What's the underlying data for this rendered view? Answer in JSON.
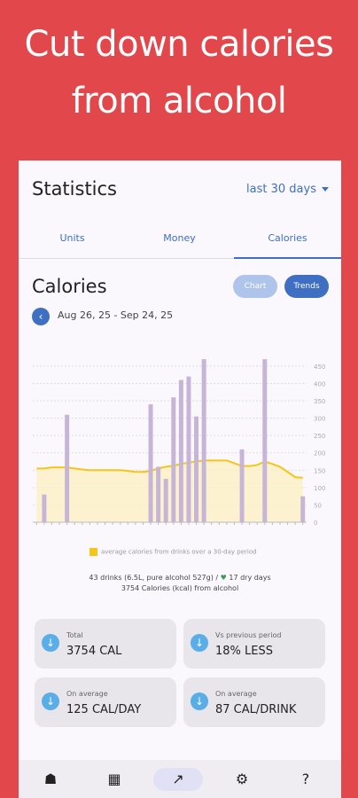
{
  "promo": {
    "line1": "Cut down calories",
    "line2": "from alcohol"
  },
  "header": {
    "title": "Statistics",
    "range": "last 30 days"
  },
  "tabs": [
    "Units",
    "Money",
    "Calories"
  ],
  "section": {
    "title": "Calories",
    "chart_btn": "Chart",
    "trends_btn": "Trends",
    "dates": "Aug 26, 25 - Sep 24, 25"
  },
  "chart_data": {
    "type": "bar",
    "y_ticks": [
      "450",
      "400",
      "350",
      "300",
      "250",
      "200",
      "150",
      "100",
      "50",
      "0"
    ],
    "ylim": [
      0,
      460
    ],
    "bars": [
      0,
      80,
      0,
      0,
      310,
      0,
      0,
      0,
      0,
      0,
      0,
      0,
      0,
      0,
      0,
      340,
      160,
      125,
      360,
      410,
      420,
      305,
      470,
      0,
      0,
      0,
      0,
      210,
      0,
      0,
      470,
      0,
      0,
      0,
      0,
      75
    ],
    "average": [
      155,
      155,
      158,
      158,
      158,
      155,
      152,
      150,
      150,
      150,
      150,
      150,
      148,
      145,
      145,
      148,
      155,
      160,
      163,
      168,
      172,
      175,
      178,
      178,
      178,
      178,
      170,
      162,
      162,
      165,
      175,
      168,
      160,
      145,
      130,
      128
    ]
  },
  "legend": "average calories from drinks over a 30-day period",
  "summary": {
    "line1_a": "43 drinks (6.5L, pure alcohol 527g) / ",
    "line1_b": "17 dry days",
    "line2": "3754 Calories (kcal) from alcohol"
  },
  "cards": [
    {
      "label": "Total",
      "value": "3754 CAL"
    },
    {
      "label": "Vs previous period",
      "value": "18% LESS"
    },
    {
      "label": "On average",
      "value": "125 CAL/DAY"
    },
    {
      "label": "On average",
      "value": "87 CAL/DRINK"
    }
  ],
  "nav": [
    "glass-icon",
    "calendar-icon",
    "trend-icon",
    "gear-icon",
    "help-icon"
  ],
  "colors": {
    "accent": "#3e6fc2",
    "bar": "#c7b5d8",
    "average": "#f5c518",
    "background": "#e2474b"
  }
}
